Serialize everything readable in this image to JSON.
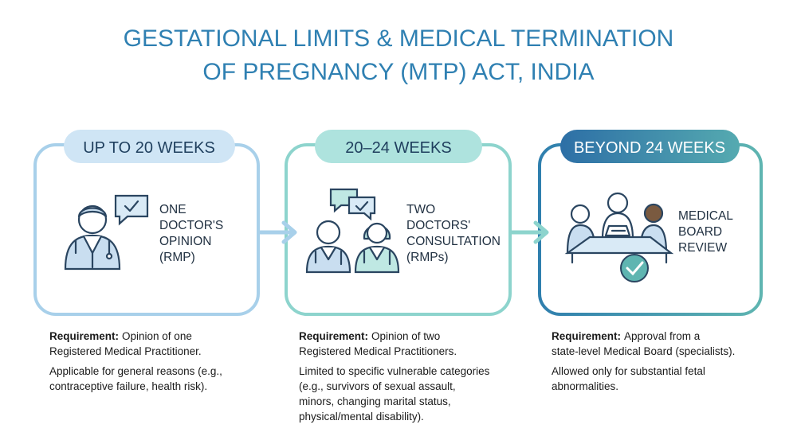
{
  "title": [
    "GESTATIONAL LIMITS & MEDICAL TERMINATION",
    "OF PREGNANCY (MTP) ACT, INDIA"
  ],
  "stages": [
    {
      "header": "UP TO 20 WEEKS",
      "label": [
        "ONE",
        "DOCTOR'S",
        "OPINION",
        "(RMP)"
      ],
      "requirement_label": "Requirement:",
      "requirement": [
        "Opinion of one",
        "Registered Medical Practitioner."
      ],
      "note": [
        "Applicable for general reasons (e.g.,",
        "contraceptive failure, health risk)."
      ]
    },
    {
      "header": "20–24 WEEKS",
      "label": [
        "TWO",
        "DOCTORS'",
        "CONSULTATION",
        "(RMPs)"
      ],
      "requirement_label": "Requirement:",
      "requirement": [
        "Opinion of two",
        "Registered Medical Practitioners."
      ],
      "note": [
        "Limited to specific vulnerable categories",
        "(e.g., survivors of sexual assault,",
        "minors, changing marital status,",
        "physical/mental disability)."
      ]
    },
    {
      "header": "BEYOND 24 WEEKS",
      "label": [
        "MEDICAL",
        "BOARD",
        "REVIEW"
      ],
      "requirement_label": "Requirement:",
      "requirement": [
        "Approval from a",
        "state-level Medical Board (specialists)."
      ],
      "note": [
        "Allowed only for substantial fetal",
        "abnormalities."
      ]
    }
  ]
}
